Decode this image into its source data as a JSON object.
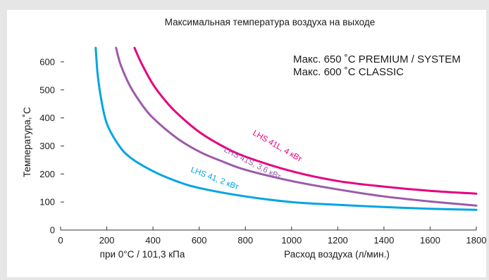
{
  "chart_data": {
    "type": "line",
    "title": "Максимальная температура воздуха на выходе",
    "xlabel": "Расход воздуха (л/мин.)",
    "xlabel_prefix": "при 0°C / 101,3 кПа",
    "ylabel": "Температура,˚С",
    "xlim": [
      0,
      1800
    ],
    "ylim": [
      0,
      650
    ],
    "xticks": [
      0,
      200,
      400,
      600,
      800,
      1000,
      1200,
      1400,
      1600,
      1800
    ],
    "yticks": [
      0,
      100,
      200,
      300,
      400,
      500,
      600
    ],
    "grid": false,
    "notes": [
      "Макс. 650 ˚C PREMIUM / SYSTEM",
      "Макс. 600 ˚C CLASSIC"
    ],
    "series": [
      {
        "name": "LHS 41, 2 кВт",
        "color": "#00a5e3",
        "x": [
          152,
          160,
          175,
          200,
          250,
          300,
          400,
          500,
          600,
          800,
          1000,
          1200,
          1400,
          1600,
          1800
        ],
        "y": [
          650,
          560,
          470,
          380,
          305,
          260,
          210,
          175,
          150,
          120,
          100,
          90,
          82,
          76,
          72
        ]
      },
      {
        "name": "LHS 41S, 3,6 кВт",
        "color": "#9b5aa8",
        "x": [
          240,
          260,
          300,
          350,
          400,
          500,
          600,
          700,
          800,
          1000,
          1200,
          1400,
          1600,
          1800
        ],
        "y": [
          650,
          590,
          515,
          450,
          400,
          330,
          280,
          245,
          215,
          175,
          145,
          120,
          102,
          87
        ]
      },
      {
        "name": "LHS 41L, 4 кВт",
        "color": "#e6007e",
        "x": [
          320,
          350,
          400,
          450,
          500,
          600,
          700,
          800,
          1000,
          1200,
          1400,
          1600,
          1800
        ],
        "y": [
          650,
          595,
          520,
          465,
          420,
          350,
          300,
          262,
          210,
          175,
          155,
          140,
          130
        ]
      }
    ]
  }
}
